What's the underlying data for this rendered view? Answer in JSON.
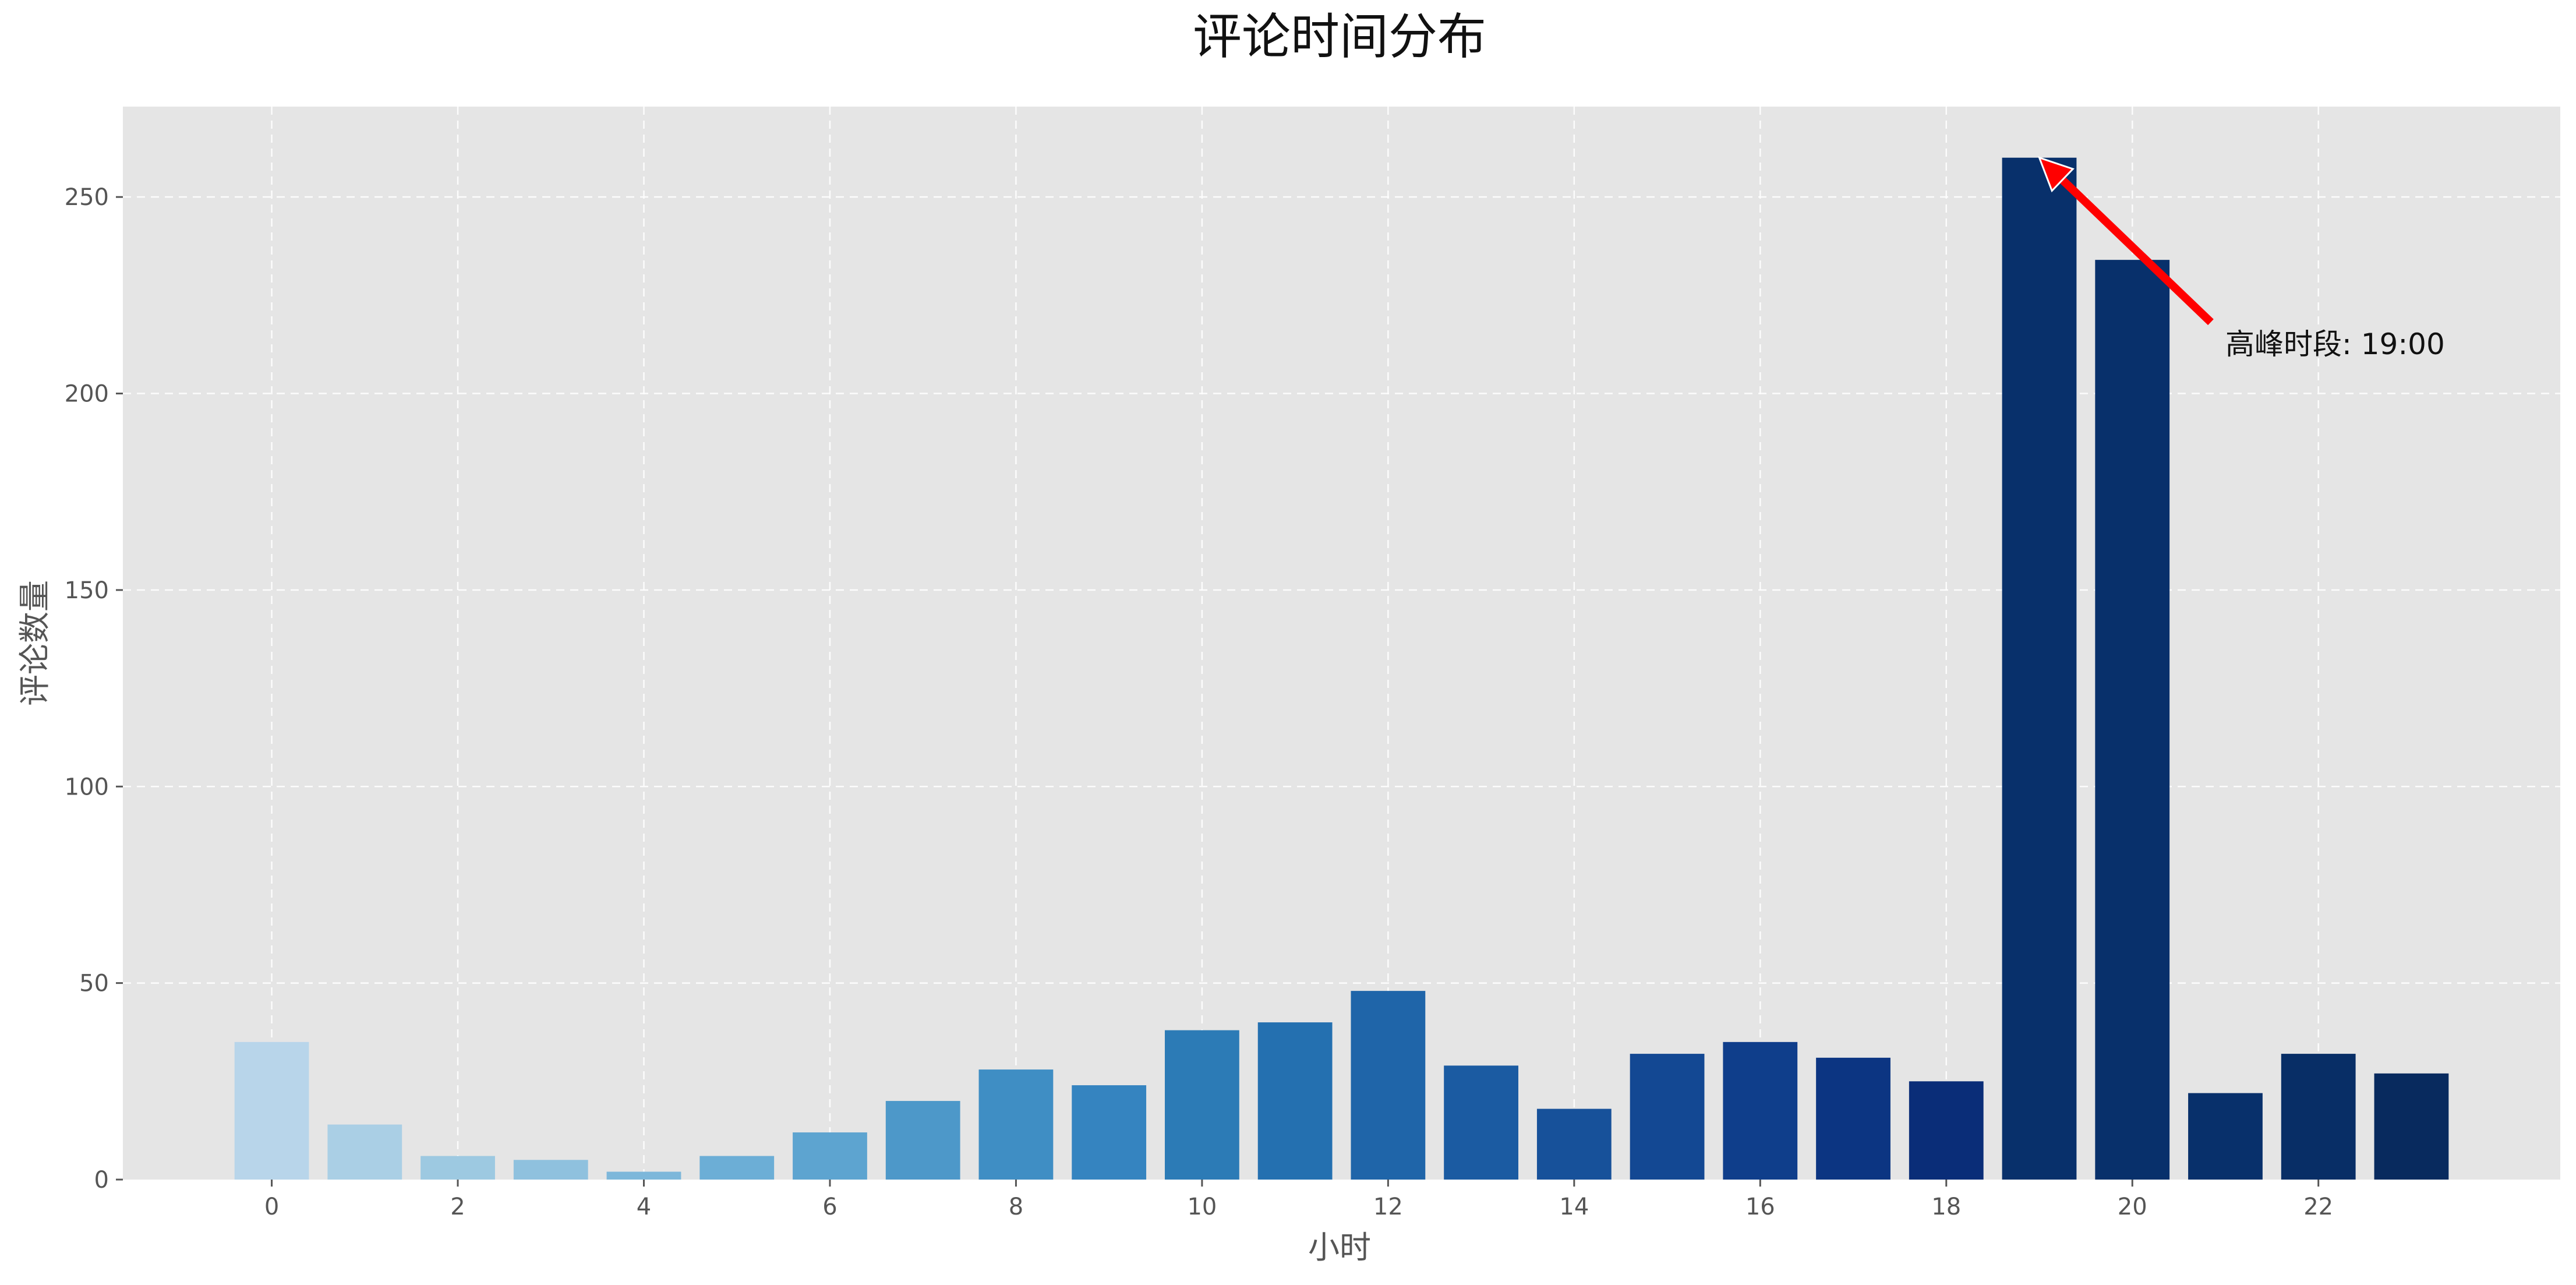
{
  "chart_data": {
    "type": "bar",
    "title": "评论时间分布",
    "xlabel": "小时",
    "ylabel": "评论数量",
    "categories": [
      0,
      1,
      2,
      3,
      4,
      5,
      6,
      7,
      8,
      9,
      10,
      11,
      12,
      13,
      14,
      15,
      16,
      17,
      18,
      19,
      20,
      21,
      22,
      23
    ],
    "values": [
      35,
      14,
      6,
      5,
      2,
      6,
      12,
      20,
      28,
      24,
      38,
      40,
      48,
      29,
      18,
      32,
      35,
      31,
      25,
      260,
      234,
      22,
      32,
      27
    ],
    "xticks": [
      0,
      2,
      4,
      6,
      8,
      10,
      12,
      14,
      16,
      18,
      20,
      22
    ],
    "yticks": [
      0,
      50,
      100,
      150,
      200,
      250
    ],
    "xlim": [
      -1.6,
      24.6
    ],
    "ylim": [
      0,
      273
    ],
    "grid": true,
    "colors": [
      "#b8d5ea",
      "#aacfe5",
      "#9dc9e1",
      "#8fc1de",
      "#7db7da",
      "#6caed6",
      "#5da4d0",
      "#4d98c9",
      "#3f8ec4",
      "#3584c0",
      "#2c7bb6",
      "#2470b0",
      "#1f65a9",
      "#1b5ba2",
      "#17519a",
      "#134893",
      "#0f3e8b",
      "#0c3582",
      "#0a2d78",
      "#08306b",
      "#08306b",
      "#08306b",
      "#082e66",
      "#082a5e"
    ],
    "annotation": {
      "text": "高峰时段: 19:00",
      "target": {
        "x": 19,
        "y": 260
      },
      "text_anchor": {
        "x": 21,
        "y": 210
      },
      "arrow_color": "#ff0000"
    }
  }
}
